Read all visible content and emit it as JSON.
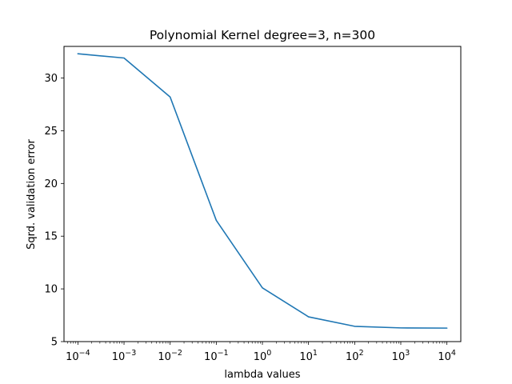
{
  "chart_data": {
    "type": "line",
    "title": "Polynomial Kernel degree=3, n=300",
    "xlabel": "lambda values",
    "ylabel": "Sqrd. validation error",
    "x_scale": "log",
    "xlim": [
      5e-05,
      20000
    ],
    "ylim": [
      5,
      33
    ],
    "grid": false,
    "legend": "none",
    "x_ticks": [
      {
        "base": "10",
        "exp": "−4",
        "value": 0.0001
      },
      {
        "base": "10",
        "exp": "−3",
        "value": 0.001
      },
      {
        "base": "10",
        "exp": "−2",
        "value": 0.01
      },
      {
        "base": "10",
        "exp": "−1",
        "value": 0.1
      },
      {
        "base": "10",
        "exp": "0",
        "value": 1
      },
      {
        "base": "10",
        "exp": "1",
        "value": 10
      },
      {
        "base": "10",
        "exp": "2",
        "value": 100
      },
      {
        "base": "10",
        "exp": "3",
        "value": 1000
      },
      {
        "base": "10",
        "exp": "4",
        "value": 10000
      }
    ],
    "y_ticks": [
      5,
      10,
      15,
      20,
      25,
      30
    ],
    "series": [
      {
        "color": "#1f77b4",
        "x": [
          0.0001,
          0.001,
          0.01,
          0.1,
          1,
          10,
          100,
          1000,
          10000
        ],
        "y": [
          32.3,
          31.9,
          28.2,
          16.5,
          10.1,
          7.35,
          6.45,
          6.3,
          6.28
        ]
      }
    ]
  }
}
